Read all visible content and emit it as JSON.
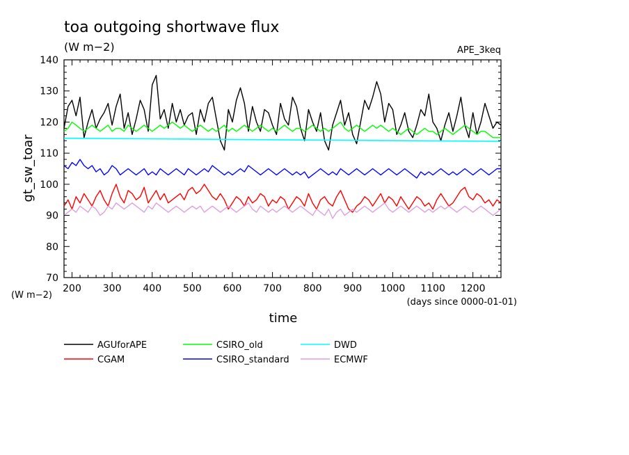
{
  "chart_data": {
    "type": "line",
    "title": "toa outgoing shortwave flux",
    "units": "(W m−2)",
    "experiment": "APE_3keq",
    "ylabel": "gt_sw_toar",
    "ylabel_units": "(W m−2)",
    "xlabel": "time",
    "xlabel_units": "(days since 0000-01-01)",
    "xlim": [
      180,
      1270
    ],
    "ylim": [
      70,
      140
    ],
    "xticks": [
      200,
      300,
      400,
      500,
      600,
      700,
      800,
      900,
      1000,
      1100,
      1200
    ],
    "yticks": [
      70,
      80,
      90,
      100,
      110,
      120,
      130,
      140
    ],
    "grid": false,
    "legend_position": "bottom",
    "series": [
      {
        "name": "AGUforAPE",
        "color": "#000000",
        "x": [
          180,
          190,
          200,
          210,
          220,
          230,
          240,
          250,
          260,
          270,
          280,
          290,
          300,
          310,
          320,
          330,
          340,
          350,
          360,
          370,
          380,
          390,
          400,
          410,
          420,
          430,
          440,
          450,
          460,
          470,
          480,
          490,
          500,
          510,
          520,
          530,
          540,
          550,
          560,
          570,
          580,
          590,
          600,
          610,
          620,
          630,
          640,
          650,
          660,
          670,
          680,
          690,
          700,
          710,
          720,
          730,
          740,
          750,
          760,
          770,
          780,
          790,
          800,
          810,
          820,
          830,
          840,
          850,
          860,
          870,
          880,
          890,
          900,
          910,
          920,
          930,
          940,
          950,
          960,
          970,
          980,
          990,
          1000,
          1010,
          1020,
          1030,
          1040,
          1050,
          1060,
          1070,
          1080,
          1090,
          1100,
          1110,
          1120,
          1130,
          1140,
          1150,
          1160,
          1170,
          1180,
          1190,
          1200,
          1210,
          1220,
          1230,
          1240,
          1250,
          1260,
          1270
        ],
        "values": [
          118,
          125,
          127,
          122,
          128,
          115,
          120,
          124,
          118,
          121,
          123,
          126,
          119,
          125,
          129,
          118,
          123,
          116,
          121,
          127,
          124,
          117,
          132,
          135,
          121,
          124,
          118,
          126,
          120,
          124,
          119,
          122,
          123,
          116,
          124,
          120,
          126,
          128,
          121,
          114,
          111,
          124,
          120,
          127,
          131,
          126,
          117,
          125,
          120,
          117,
          124,
          123,
          119,
          116,
          126,
          121,
          119,
          128,
          125,
          118,
          114,
          124,
          120,
          117,
          123,
          114,
          111,
          119,
          123,
          127,
          119,
          123,
          116,
          113,
          120,
          127,
          124,
          128,
          133,
          129,
          120,
          126,
          124,
          116,
          119,
          123,
          117,
          115,
          119,
          124,
          122,
          129,
          120,
          118,
          114,
          119,
          123,
          117,
          122,
          128,
          119,
          115,
          123,
          116,
          120,
          126,
          122,
          118,
          120,
          119
        ]
      },
      {
        "name": "CGAM",
        "color": "#ff0000",
        "x": [
          180,
          190,
          200,
          210,
          220,
          230,
          240,
          250,
          260,
          270,
          280,
          290,
          300,
          310,
          320,
          330,
          340,
          350,
          360,
          370,
          380,
          390,
          400,
          410,
          420,
          430,
          440,
          450,
          460,
          470,
          480,
          490,
          500,
          510,
          520,
          530,
          540,
          550,
          560,
          570,
          580,
          590,
          600,
          610,
          620,
          630,
          640,
          650,
          660,
          670,
          680,
          690,
          700,
          710,
          720,
          730,
          740,
          750,
          760,
          770,
          780,
          790,
          800,
          810,
          820,
          830,
          840,
          850,
          860,
          870,
          880,
          890,
          900,
          910,
          920,
          930,
          940,
          950,
          960,
          970,
          980,
          990,
          1000,
          1010,
          1020,
          1030,
          1040,
          1050,
          1060,
          1070,
          1080,
          1090,
          1100,
          1110,
          1120,
          1130,
          1140,
          1150,
          1160,
          1170,
          1180,
          1190,
          1200,
          1210,
          1220,
          1230,
          1240,
          1250,
          1260,
          1270
        ],
        "values": [
          93,
          95,
          92,
          96,
          94,
          97,
          95,
          93,
          96,
          98,
          95,
          93,
          97,
          100,
          96,
          94,
          98,
          97,
          95,
          96,
          99,
          94,
          96,
          98,
          95,
          97,
          94,
          95,
          96,
          97,
          95,
          98,
          99,
          97,
          98,
          100,
          98,
          96,
          95,
          97,
          95,
          92,
          94,
          96,
          95,
          93,
          96,
          94,
          95,
          97,
          96,
          93,
          95,
          94,
          96,
          95,
          92,
          94,
          96,
          95,
          93,
          97,
          94,
          92,
          95,
          96,
          94,
          93,
          96,
          98,
          95,
          92,
          91,
          93,
          94,
          96,
          95,
          93,
          95,
          97,
          94,
          96,
          95,
          93,
          96,
          94,
          92,
          94,
          96,
          95,
          93,
          94,
          92,
          95,
          97,
          95,
          93,
          94,
          96,
          98,
          99,
          96,
          95,
          97,
          96,
          94,
          95,
          93,
          95,
          94
        ]
      },
      {
        "name": "CSIRO_old",
        "color": "#00ff00",
        "x": [
          180,
          190,
          200,
          210,
          220,
          230,
          240,
          250,
          260,
          270,
          280,
          290,
          300,
          310,
          320,
          330,
          340,
          350,
          360,
          370,
          380,
          390,
          400,
          410,
          420,
          430,
          440,
          450,
          460,
          470,
          480,
          490,
          500,
          510,
          520,
          530,
          540,
          550,
          560,
          570,
          580,
          590,
          600,
          610,
          620,
          630,
          640,
          650,
          660,
          670,
          680,
          690,
          700,
          710,
          720,
          730,
          740,
          750,
          760,
          770,
          780,
          790,
          800,
          810,
          820,
          830,
          840,
          850,
          860,
          870,
          880,
          890,
          900,
          910,
          920,
          930,
          940,
          950,
          960,
          970,
          980,
          990,
          1000,
          1010,
          1020,
          1030,
          1040,
          1050,
          1060,
          1070,
          1080,
          1090,
          1100,
          1110,
          1120,
          1130,
          1140,
          1150,
          1160,
          1170,
          1180,
          1190,
          1200,
          1210,
          1220,
          1230,
          1240,
          1250,
          1260,
          1270
        ],
        "values": [
          117,
          118,
          120,
          119,
          118,
          117,
          118,
          119,
          118,
          117,
          118,
          119,
          117,
          118,
          118,
          117,
          119,
          118,
          117,
          118,
          119,
          118,
          117,
          118,
          119,
          118,
          119,
          120,
          119,
          118,
          119,
          118,
          117,
          118,
          119,
          118,
          117,
          118,
          117,
          118,
          119,
          117,
          118,
          117,
          118,
          119,
          118,
          117,
          118,
          119,
          118,
          117,
          118,
          117,
          118,
          119,
          118,
          117,
          118,
          118,
          117,
          118,
          119,
          118,
          117,
          118,
          117,
          118,
          119,
          120,
          118,
          117,
          118,
          119,
          118,
          117,
          118,
          119,
          118,
          119,
          118,
          117,
          118,
          117,
          116,
          117,
          118,
          117,
          116,
          117,
          118,
          117,
          117,
          116,
          117,
          118,
          117,
          116,
          117,
          118,
          119,
          118,
          117,
          116,
          117,
          117,
          116,
          115,
          115,
          115
        ]
      },
      {
        "name": "CSIRO_standard",
        "color": "#0000ff",
        "x": [
          180,
          190,
          200,
          210,
          220,
          230,
          240,
          250,
          260,
          270,
          280,
          290,
          300,
          310,
          320,
          330,
          340,
          350,
          360,
          370,
          380,
          390,
          400,
          410,
          420,
          430,
          440,
          450,
          460,
          470,
          480,
          490,
          500,
          510,
          520,
          530,
          540,
          550,
          560,
          570,
          580,
          590,
          600,
          610,
          620,
          630,
          640,
          650,
          660,
          670,
          680,
          690,
          700,
          710,
          720,
          730,
          740,
          750,
          760,
          770,
          780,
          790,
          800,
          810,
          820,
          830,
          840,
          850,
          860,
          870,
          880,
          890,
          900,
          910,
          920,
          930,
          940,
          950,
          960,
          970,
          980,
          990,
          1000,
          1010,
          1020,
          1030,
          1040,
          1050,
          1060,
          1070,
          1080,
          1090,
          1100,
          1110,
          1120,
          1130,
          1140,
          1150,
          1160,
          1170,
          1180,
          1190,
          1200,
          1210,
          1220,
          1230,
          1240,
          1250,
          1260,
          1270
        ],
        "values": [
          106,
          105,
          107,
          106,
          108,
          106,
          105,
          106,
          104,
          105,
          103,
          104,
          106,
          105,
          103,
          104,
          105,
          104,
          103,
          104,
          105,
          103,
          104,
          103,
          105,
          104,
          103,
          104,
          105,
          104,
          103,
          105,
          104,
          103,
          104,
          105,
          104,
          106,
          105,
          104,
          103,
          104,
          103,
          104,
          105,
          104,
          106,
          105,
          104,
          103,
          104,
          105,
          104,
          103,
          104,
          105,
          104,
          103,
          104,
          103,
          104,
          102,
          103,
          104,
          105,
          104,
          103,
          104,
          103,
          105,
          104,
          103,
          104,
          105,
          104,
          103,
          104,
          105,
          104,
          103,
          104,
          105,
          104,
          103,
          104,
          105,
          104,
          103,
          102,
          104,
          103,
          104,
          103,
          104,
          105,
          104,
          103,
          104,
          103,
          104,
          105,
          104,
          103,
          104,
          105,
          104,
          103,
          104,
          105,
          105
        ]
      },
      {
        "name": "DWD",
        "color": "#00ffff",
        "x": [
          180,
          1270
        ],
        "values": [
          114.8,
          113.8
        ]
      },
      {
        "name": "ECMWF",
        "color": "#dda0dd",
        "x": [
          180,
          190,
          200,
          210,
          220,
          230,
          240,
          250,
          260,
          270,
          280,
          290,
          300,
          310,
          320,
          330,
          340,
          350,
          360,
          370,
          380,
          390,
          400,
          410,
          420,
          430,
          440,
          450,
          460,
          470,
          480,
          490,
          500,
          510,
          520,
          530,
          540,
          550,
          560,
          570,
          580,
          590,
          600,
          610,
          620,
          630,
          640,
          650,
          660,
          670,
          680,
          690,
          700,
          710,
          720,
          730,
          740,
          750,
          760,
          770,
          780,
          790,
          800,
          810,
          820,
          830,
          840,
          850,
          860,
          870,
          880,
          890,
          900,
          910,
          920,
          930,
          940,
          950,
          960,
          970,
          980,
          990,
          1000,
          1010,
          1020,
          1030,
          1040,
          1050,
          1060,
          1070,
          1080,
          1090,
          1100,
          1110,
          1120,
          1130,
          1140,
          1150,
          1160,
          1170,
          1180,
          1190,
          1200,
          1210,
          1220,
          1230,
          1240,
          1250,
          1260,
          1270
        ],
        "values": [
          90,
          91,
          92,
          91,
          93,
          92,
          91,
          93,
          92,
          90,
          91,
          93,
          92,
          94,
          93,
          92,
          93,
          94,
          93,
          92,
          91,
          93,
          92,
          94,
          93,
          92,
          91,
          92,
          93,
          92,
          91,
          92,
          93,
          92,
          93,
          91,
          92,
          93,
          92,
          91,
          92,
          93,
          92,
          91,
          92,
          93,
          94,
          92,
          91,
          93,
          92,
          91,
          92,
          91,
          92,
          93,
          92,
          91,
          92,
          93,
          92,
          91,
          90,
          92,
          91,
          90,
          92,
          89,
          91,
          92,
          90,
          91,
          92,
          91,
          92,
          93,
          92,
          91,
          92,
          93,
          94,
          92,
          91,
          92,
          93,
          92,
          91,
          92,
          93,
          92,
          91,
          92,
          91,
          92,
          93,
          92,
          93,
          92,
          91,
          92,
          93,
          92,
          91,
          92,
          93,
          92,
          91,
          90,
          91,
          92
        ]
      }
    ]
  }
}
